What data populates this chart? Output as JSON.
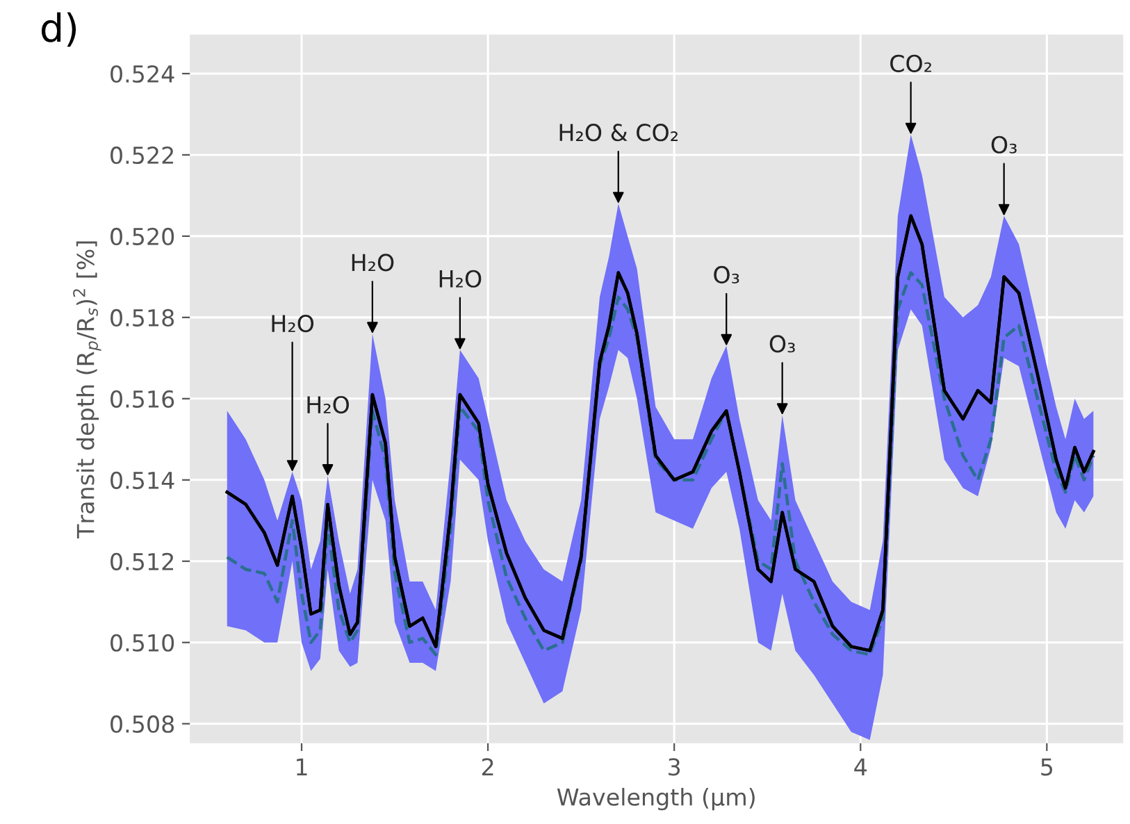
{
  "chart_data": {
    "type": "line",
    "xlabel": "Wavelength (μm)",
    "ylabel": "Transit depth (R$_{p}$/R$_{s}$)$^{2}$ [%]",
    "xlim": [
      0.4,
      5.41
    ],
    "ylim": [
      0.50752,
      0.52496
    ],
    "xticks": [
      1,
      2,
      3,
      4,
      5
    ],
    "yticks": [
      0.508,
      {
        "value": 0.51,
        "label": "0.510"
      },
      0.512,
      0.514,
      0.516,
      0.518,
      {
        "value": 0.52,
        "label": "0.520"
      },
      0.522,
      0.524
    ],
    "grid": true,
    "x": [
      0.6,
      0.7,
      0.8,
      0.87,
      0.95,
      1.0,
      1.05,
      1.1,
      1.14,
      1.2,
      1.26,
      1.3,
      1.38,
      1.45,
      1.5,
      1.58,
      1.65,
      1.72,
      1.8,
      1.85,
      1.95,
      2.0,
      2.1,
      2.2,
      2.3,
      2.4,
      2.5,
      2.6,
      2.65,
      2.7,
      2.75,
      2.8,
      2.9,
      3.0,
      3.1,
      3.2,
      3.28,
      3.35,
      3.45,
      3.52,
      3.58,
      3.65,
      3.75,
      3.85,
      3.95,
      4.05,
      4.12,
      4.2,
      4.27,
      4.33,
      4.45,
      4.55,
      4.63,
      4.7,
      4.77,
      4.85,
      4.95,
      5.05,
      5.1,
      5.15,
      5.2,
      5.25
    ],
    "series": [
      {
        "color": "#2a6f8f",
        "line_style": "dashed",
        "values": [
          0.5121,
          0.5118,
          0.5117,
          0.511,
          0.513,
          0.5112,
          0.51,
          0.5103,
          0.5129,
          0.5108,
          0.51,
          0.5103,
          0.5157,
          0.5145,
          0.5117,
          0.51,
          0.5101,
          0.5097,
          0.5128,
          0.5158,
          0.5152,
          0.5135,
          0.5116,
          0.5106,
          0.5098,
          0.51,
          0.512,
          0.5168,
          0.5175,
          0.5185,
          0.5182,
          0.5175,
          0.5145,
          0.514,
          0.514,
          0.515,
          0.5157,
          0.5142,
          0.512,
          0.5118,
          0.5144,
          0.512,
          0.511,
          0.5102,
          0.5098,
          0.5097,
          0.5106,
          0.5182,
          0.5191,
          0.5188,
          0.516,
          0.5146,
          0.514,
          0.515,
          0.5175,
          0.5178,
          0.516,
          0.5142,
          0.5137,
          0.5146,
          0.514,
          0.5146
        ]
      },
      {
        "color": "#000000",
        "line_style": "solid",
        "lower": [
          0.5104,
          0.5103,
          0.51,
          0.51,
          0.512,
          0.51,
          0.5093,
          0.5096,
          0.5118,
          0.5098,
          0.5094,
          0.5095,
          0.514,
          0.513,
          0.5105,
          0.5095,
          0.5095,
          0.5093,
          0.5115,
          0.5145,
          0.514,
          0.5125,
          0.5105,
          0.5095,
          0.5085,
          0.5088,
          0.5108,
          0.5155,
          0.5163,
          0.5172,
          0.517,
          0.516,
          0.5132,
          0.513,
          0.5128,
          0.5138,
          0.5142,
          0.5128,
          0.51,
          0.5098,
          0.5112,
          0.5098,
          0.5092,
          0.5085,
          0.5078,
          0.5076,
          0.5092,
          0.5172,
          0.5182,
          0.5178,
          0.5145,
          0.5138,
          0.5136,
          0.5148,
          0.517,
          0.5168,
          0.515,
          0.5132,
          0.5128,
          0.5135,
          0.5132,
          0.5136
        ],
        "upper": [
          0.5157,
          0.515,
          0.514,
          0.513,
          0.5142,
          0.5135,
          0.5118,
          0.5125,
          0.5141,
          0.5125,
          0.5112,
          0.5118,
          0.5176,
          0.516,
          0.5135,
          0.5115,
          0.5115,
          0.5108,
          0.5145,
          0.5172,
          0.5165,
          0.5155,
          0.5135,
          0.5125,
          0.5118,
          0.5115,
          0.5135,
          0.5185,
          0.5195,
          0.5208,
          0.52,
          0.5192,
          0.5158,
          0.515,
          0.515,
          0.5165,
          0.5173,
          0.5155,
          0.5135,
          0.513,
          0.5156,
          0.5135,
          0.5125,
          0.5115,
          0.511,
          0.5108,
          0.5125,
          0.5205,
          0.5225,
          0.5215,
          0.5185,
          0.518,
          0.5183,
          0.519,
          0.5205,
          0.5198,
          0.5178,
          0.5158,
          0.515,
          0.516,
          0.5155,
          0.5157
        ],
        "values": [
          0.5137,
          0.5134,
          0.5127,
          0.5119,
          0.5136,
          0.5123,
          0.5107,
          0.5108,
          0.5134,
          0.5114,
          0.5102,
          0.5105,
          0.5161,
          0.5149,
          0.5121,
          0.5104,
          0.5106,
          0.5099,
          0.5132,
          0.5161,
          0.5154,
          0.5139,
          0.5122,
          0.5111,
          0.5103,
          0.5101,
          0.5121,
          0.5169,
          0.5178,
          0.5191,
          0.5186,
          0.5176,
          0.5146,
          0.514,
          0.5142,
          0.5152,
          0.5157,
          0.5142,
          0.5118,
          0.5115,
          0.5132,
          0.5118,
          0.5115,
          0.5104,
          0.5099,
          0.5098,
          0.5108,
          0.519,
          0.5205,
          0.5198,
          0.5162,
          0.5155,
          0.5162,
          0.5159,
          0.519,
          0.5186,
          0.5166,
          0.5145,
          0.5138,
          0.5148,
          0.5142,
          0.5147
        ]
      }
    ],
    "annotations": [
      "d)",
      {
        "text": "H₂O",
        "x": 0.95,
        "y": 0.5142
      },
      {
        "text": "H₂O",
        "x": 1.14,
        "y": 0.5141
      },
      {
        "text": "H₂O",
        "x": 1.38,
        "y": 0.5176
      },
      {
        "text": "H₂O",
        "x": 1.85,
        "y": 0.5172
      },
      {
        "text": "H₂O & CO₂",
        "x": 2.7,
        "y": 0.5208
      },
      {
        "text": "O₃",
        "x": 3.28,
        "y": 0.5173
      },
      {
        "text": "O₃",
        "x": 3.58,
        "y": 0.5156
      },
      {
        "text": "CO₂",
        "x": 4.27,
        "y": 0.5225
      },
      {
        "text": "O₃",
        "x": 4.77,
        "y": 0.5205
      }
    ]
  }
}
